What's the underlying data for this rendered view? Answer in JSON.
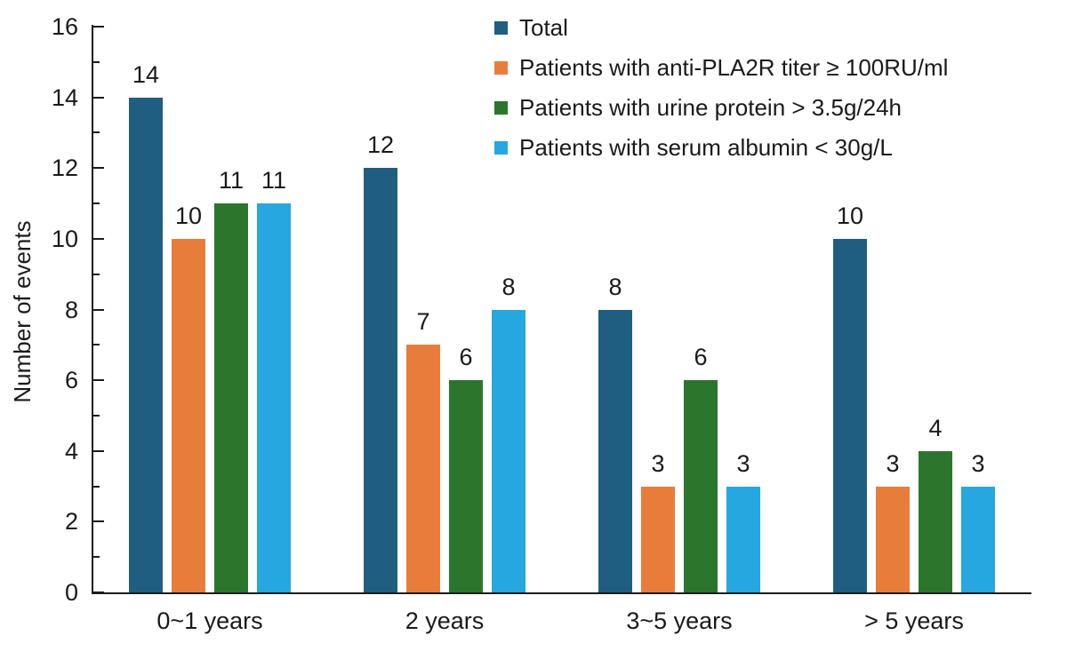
{
  "chart_data": {
    "type": "bar",
    "title": "",
    "xlabel": "",
    "ylabel": "Number of events",
    "ylim": [
      0,
      16
    ],
    "y_major_ticks": [
      0,
      2,
      4,
      6,
      8,
      10,
      12,
      14,
      16
    ],
    "y_minor_ticks": [
      1,
      3,
      5,
      7,
      9,
      11,
      13,
      15
    ],
    "grid": false,
    "legend_position": "top-right",
    "bar_value_labels": true,
    "categories": [
      "0~1 years",
      "2 years",
      "3~5 years",
      "> 5 years"
    ],
    "series": [
      {
        "name": "Total",
        "color": "#1f5e80",
        "values": [
          14,
          12,
          8,
          10
        ]
      },
      {
        "name": "Patients with anti-PLA2R titer ≥ 100RU/ml",
        "color": "#e87d3b",
        "values": [
          10,
          7,
          3,
          3
        ]
      },
      {
        "name": "Patients with urine protein > 3.5g/24h",
        "color": "#2b762c",
        "values": [
          11,
          6,
          6,
          4
        ]
      },
      {
        "name": "Patients with serum albumin < 30g/L",
        "color": "#26a7e0",
        "values": [
          11,
          8,
          3,
          3
        ]
      }
    ]
  }
}
